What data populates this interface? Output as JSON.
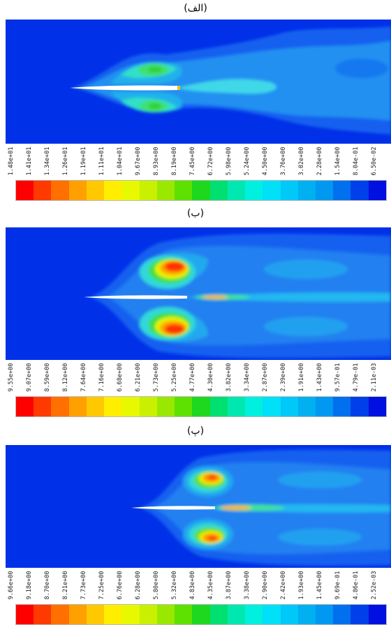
{
  "panels": [
    {
      "caption": "(الف)",
      "ticks": [
        "1.48e+01",
        "1.41e+01",
        "1.34e+01",
        "1.26e+01",
        "1.19e+01",
        "1.11e+01",
        "1.04e+01",
        "9.67e+00",
        "8.93e+00",
        "8.19e+00",
        "7.45e+00",
        "6.72e+00",
        "5.98e+00",
        "5.24e+00",
        "4.50e+00",
        "3.76e+00",
        "3.02e+00",
        "2.28e+00",
        "1.54e+00",
        "8.04e-01",
        "6.50e-02"
      ]
    },
    {
      "caption": "(ب)",
      "ticks": [
        "9.55e+00",
        "9.07e+00",
        "8.59e+00",
        "8.12e+00",
        "7.64e+00",
        "7.16e+00",
        "6.68e+00",
        "6.21e+00",
        "5.73e+00",
        "5.25e+00",
        "4.77e+00",
        "4.30e+00",
        "3.82e+00",
        "3.34e+00",
        "2.87e+00",
        "2.39e+00",
        "1.91e+00",
        "1.43e+00",
        "9.57e-01",
        "4.79e-01",
        "2.11e-03"
      ]
    },
    {
      "caption": "(پ)",
      "ticks": [
        "9.66e+00",
        "9.18e+00",
        "8.70e+00",
        "8.21e+00",
        "7.73e+00",
        "7.25e+00",
        "6.76e+00",
        "6.28e+00",
        "5.80e+00",
        "5.32e+00",
        "4.83e+00",
        "4.35e+00",
        "3.87e+00",
        "3.38e+00",
        "2.90e+00",
        "2.42e+00",
        "1.93e+00",
        "1.45e+00",
        "9.69e-01",
        "4.86e-01",
        "2.52e-03"
      ]
    }
  ],
  "colorbar": [
    "#ff0000",
    "#ff3a00",
    "#ff7000",
    "#ffa000",
    "#ffc800",
    "#ffee00",
    "#e8f800",
    "#c8f000",
    "#9ae800",
    "#5ee000",
    "#1ed820",
    "#00e070",
    "#00e8b0",
    "#00f0e0",
    "#00e0f8",
    "#00c8f8",
    "#00b0f0",
    "#0098f0",
    "#0070ee",
    "#0040ea",
    "#0010e0"
  ]
}
